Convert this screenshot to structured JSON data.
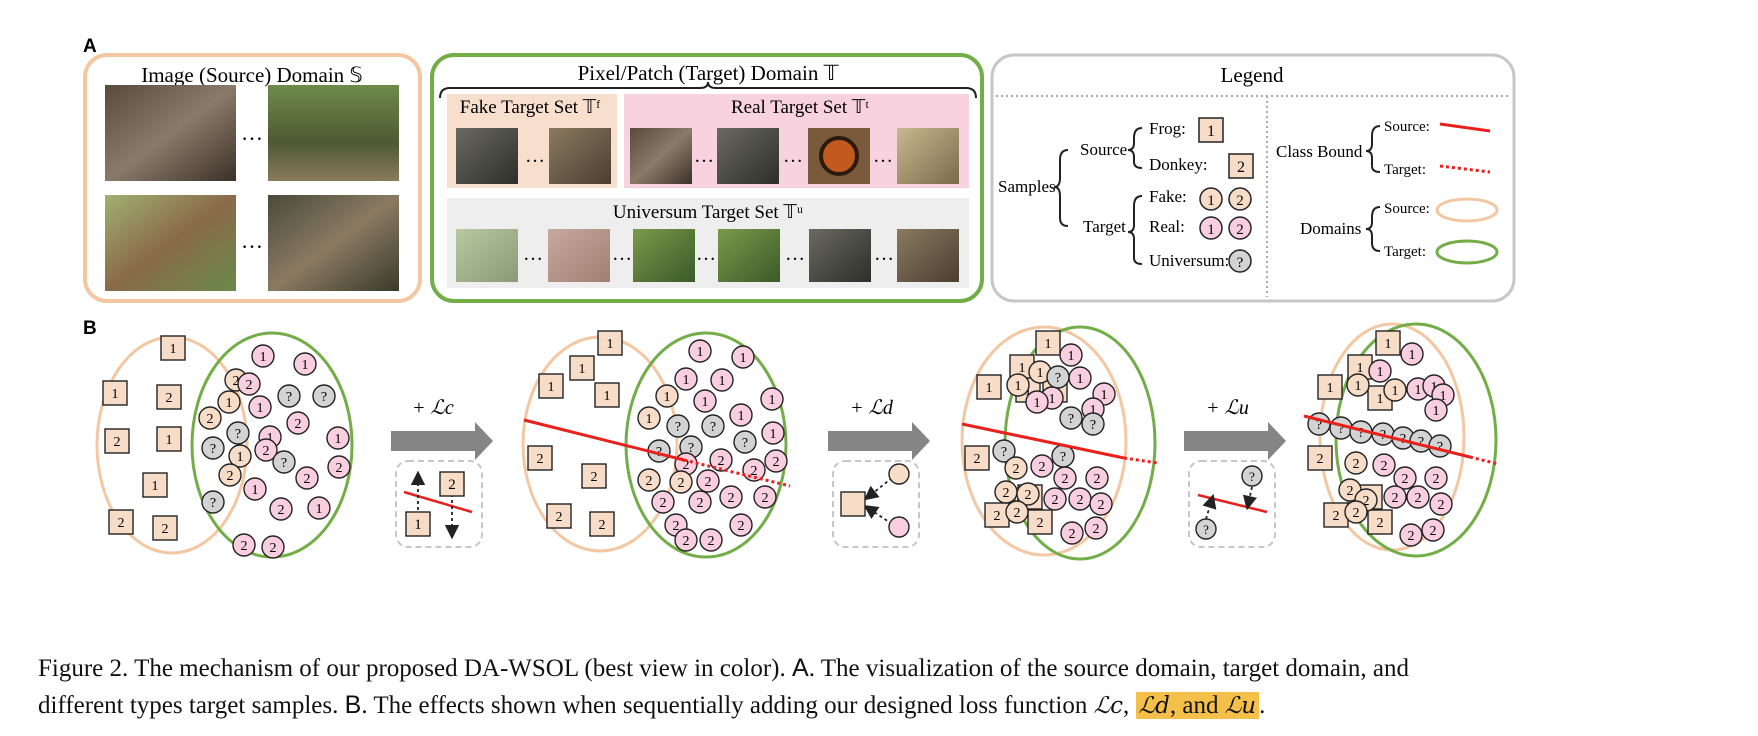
{
  "panel_a": {
    "label": "A",
    "source_title": "Image (Source) Domain 𝕊",
    "target_title": "Pixel/Patch (Target) Domain 𝕋",
    "fake_title": "Fake Target Set 𝕋ᶠ",
    "real_title": "Real Target Set 𝕋ᵗ",
    "universum_title": "Universum Target Set 𝕋ᵘ",
    "ellipsis": "…"
  },
  "legend": {
    "title": "Legend",
    "samples": "Samples",
    "source": "Source",
    "target": "Target",
    "frog": "Frog:",
    "donkey": "Donkey:",
    "fake": "Fake:",
    "real": "Real:",
    "universum": "Universum:",
    "class_bound": "Class Bound",
    "domains": "Domains",
    "bound_source": "Source:",
    "bound_target": "Target:",
    "dom_source": "Source:",
    "dom_target": "Target:",
    "one": "1",
    "two": "2",
    "q": "?"
  },
  "panel_b": {
    "label": "B",
    "step_c": "+ ℒc",
    "step_d": "+ ℒd",
    "step_u": "+ ℒu"
  },
  "caption": {
    "p1": "Figure 2. The mechanism of our proposed DA-WSOL (best view in color). ",
    "a": "A",
    "p2": ". The visualization of the source domain, target domain, and",
    "p3": "different types target samples. ",
    "b": "B",
    "p4": ". The effects shown when sequentially adding our designed loss function ",
    "lc": "ℒc",
    "comma": ", ",
    "ld": "ℒd",
    "and": ", and ",
    "lu": "ℒu",
    "end": "."
  },
  "colors": {
    "source": "#f4c7a3",
    "target": "#72ad47",
    "square_fill": "#f7dcc8",
    "real_fill": "#f9cfe0",
    "universum_fill": "#d3d3d3",
    "fake_band": "#f8dfcd",
    "real_band": "#f9d2e0",
    "bound": "#e8211d",
    "arrow": "#858585"
  }
}
